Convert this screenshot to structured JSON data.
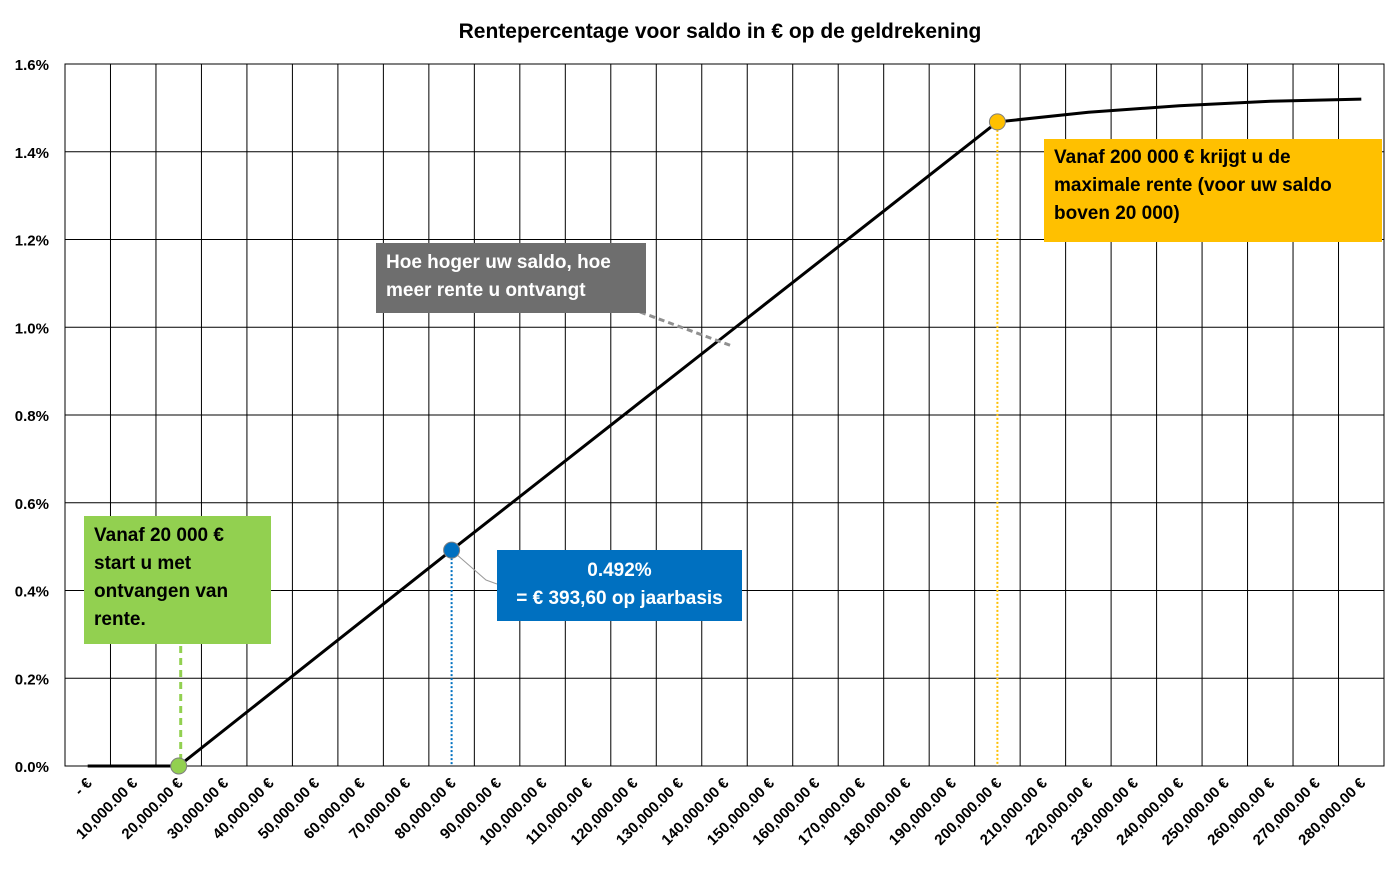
{
  "chart_data": {
    "type": "line",
    "title": "Rentepercentage voor saldo in € op de geldrekening",
    "xlabel": "",
    "ylabel": "",
    "x_ticks": [
      "-  €",
      "10,000.00 €",
      "20,000.00 €",
      "30,000.00 €",
      "40,000.00 €",
      "50,000.00 €",
      "60,000.00 €",
      "70,000.00 €",
      "80,000.00 €",
      "90,000.00 €",
      "100,000.00 €",
      "110,000.00 €",
      "120,000.00 €",
      "130,000.00 €",
      "140,000.00 €",
      "150,000.00 €",
      "160,000.00 €",
      "170,000.00 €",
      "180,000.00 €",
      "190,000.00 €",
      "200,000.00 €",
      "210,000.00 €",
      "220,000.00 €",
      "230,000.00 €",
      "240,000.00 €",
      "250,000.00 €",
      "260,000.00 €",
      "270,000.00 €",
      "280,000.00 €"
    ],
    "xlim": [
      0,
      280000
    ],
    "y_ticks": [
      "0.0%",
      "0.2%",
      "0.4%",
      "0.6%",
      "0.8%",
      "1.0%",
      "1.2%",
      "1.4%",
      "1.6%"
    ],
    "ylim": [
      0,
      1.6
    ],
    "grid": true,
    "series": [
      {
        "x": [
          0,
          20000,
          80000,
          140000,
          200000,
          220000,
          240000,
          260000,
          280000
        ],
        "y": [
          0,
          0,
          0.492,
          0.98,
          1.468,
          1.49,
          1.505,
          1.515,
          1.52
        ],
        "color": "#000000"
      }
    ],
    "highlights": [
      {
        "x": 20000,
        "y": 0,
        "color": "#92d050"
      },
      {
        "x": 80000,
        "y": 0.492,
        "color": "#0070c0"
      },
      {
        "x": 200000,
        "y": 1.468,
        "color": "#ffc000"
      }
    ],
    "annotations": {
      "green": [
        "Vanaf 20 000 €",
        "start u met",
        "ontvangen van",
        "rente."
      ],
      "blue": [
        "0.492%",
        "= € 393,60 op jaarbasis"
      ],
      "gray": [
        "Hoe hoger uw saldo, hoe",
        "meer rente u ontvangt"
      ],
      "orange": [
        "Vanaf 200 000 € krijgt u de",
        "maximale rente (voor uw saldo",
        "boven 20 000)"
      ]
    }
  }
}
